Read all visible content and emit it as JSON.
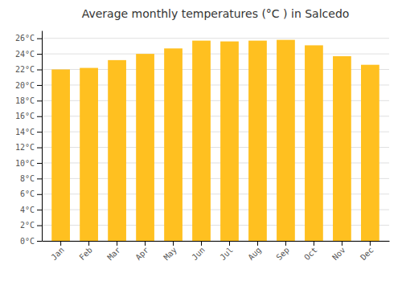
{
  "chart_data": {
    "type": "bar",
    "title": "Average monthly temperatures (°C ) in Salcedo",
    "categories": [
      "Jan",
      "Feb",
      "Mar",
      "Apr",
      "May",
      "Jun",
      "Jul",
      "Aug",
      "Sep",
      "Oct",
      "Nov",
      "Dec"
    ],
    "values": [
      22.0,
      22.2,
      23.2,
      24.0,
      24.7,
      25.7,
      25.6,
      25.7,
      25.8,
      25.1,
      23.7,
      22.6
    ],
    "color": "#FFC020",
    "ylim": [
      0,
      27
    ],
    "yticks": [
      {
        "value": 0,
        "label": "0°C"
      },
      {
        "value": 2,
        "label": "2°C"
      },
      {
        "value": 4,
        "label": "4°C"
      },
      {
        "value": 6,
        "label": "6°C"
      },
      {
        "value": 8,
        "label": "8°C"
      },
      {
        "value": 10,
        "label": "10°C"
      },
      {
        "value": 12,
        "label": "12°C"
      },
      {
        "value": 14,
        "label": "14°C"
      },
      {
        "value": 16,
        "label": "16°C"
      },
      {
        "value": 18,
        "label": "18°C"
      },
      {
        "value": 20,
        "label": "20°C"
      },
      {
        "value": 22,
        "label": "22°C"
      },
      {
        "value": 24,
        "label": "24°C"
      },
      {
        "value": 26,
        "label": "26°C"
      }
    ],
    "grid": true
  }
}
